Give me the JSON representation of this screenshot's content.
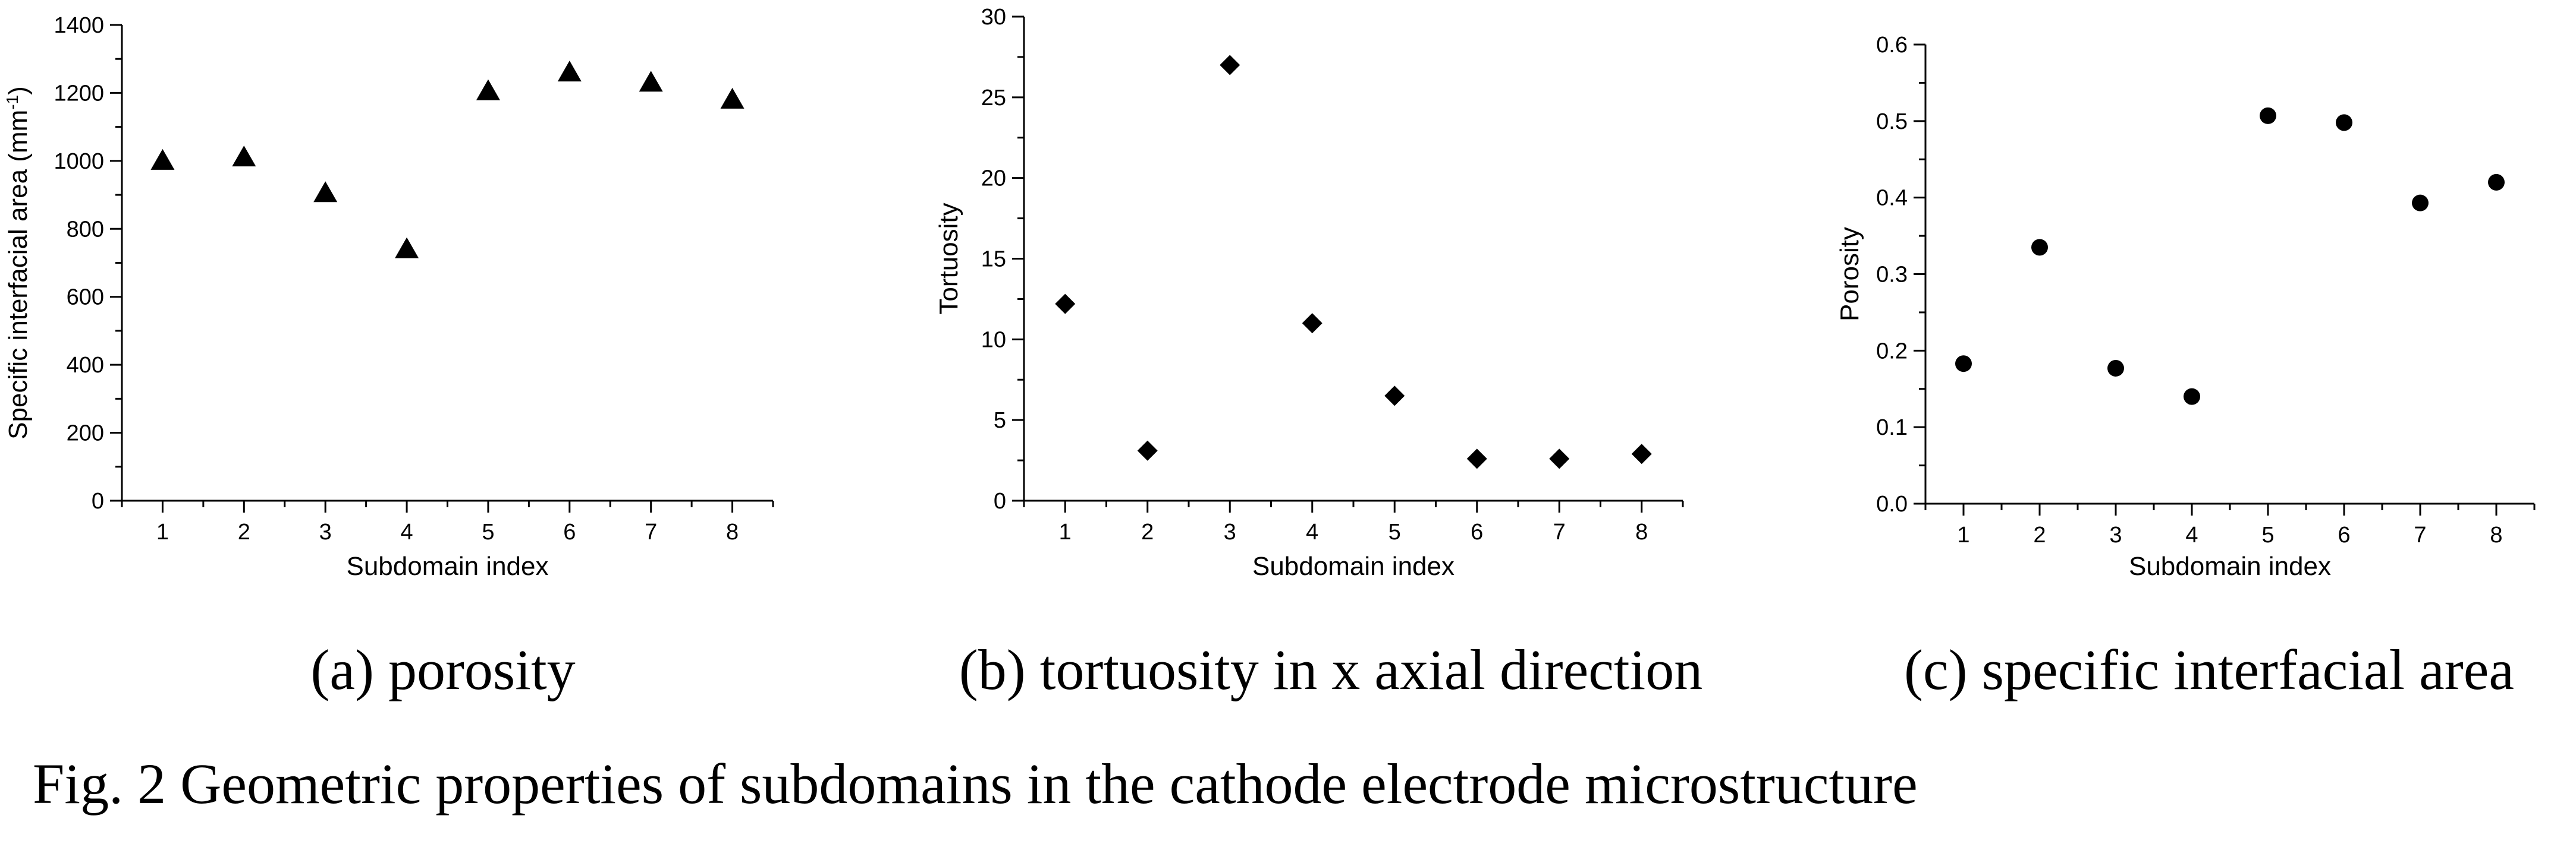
{
  "figure": {
    "caption": "Fig. 2 Geometric properties of subdomains in the cathode electrode microstructure"
  },
  "panels": [
    {
      "sublabel": "(a) porosity"
    },
    {
      "sublabel": "(b) tortuosity in x axial direction"
    },
    {
      "sublabel": "(c)  specific interfacial area"
    }
  ],
  "chart_data": [
    {
      "type": "scatter",
      "marker": "triangle",
      "xlabel": "Subdomain index",
      "ylabel": "Specific interfacial area (mm",
      "ylabel_sup": "-1",
      "ylabel_tail": ")",
      "x": [
        1,
        2,
        3,
        4,
        5,
        6,
        7,
        8
      ],
      "y": [
        1000,
        1010,
        905,
        740,
        1205,
        1260,
        1230,
        1180
      ],
      "xlim": [
        0.5,
        8.5
      ],
      "ylim": [
        0,
        1400
      ],
      "xticks": [
        "1",
        "2",
        "3",
        "4",
        "5",
        "6",
        "7",
        "8"
      ],
      "yticks": [
        "0",
        "200",
        "400",
        "600",
        "800",
        "1000",
        "1200",
        "1400"
      ],
      "grid": false
    },
    {
      "type": "scatter",
      "marker": "diamond",
      "xlabel": "Subdomain index",
      "ylabel": "Tortuosity",
      "x": [
        1,
        2,
        3,
        4,
        5,
        6,
        7,
        8
      ],
      "y": [
        12.2,
        3.1,
        27,
        11,
        6.5,
        2.6,
        2.6,
        2.9
      ],
      "xlim": [
        0.5,
        8.5
      ],
      "ylim": [
        0,
        30
      ],
      "xticks": [
        "1",
        "2",
        "3",
        "4",
        "5",
        "6",
        "7",
        "8"
      ],
      "yticks": [
        "0",
        "5",
        "10",
        "15",
        "20",
        "25",
        "30"
      ],
      "grid": false
    },
    {
      "type": "scatter",
      "marker": "circle",
      "xlabel": "Subdomain index",
      "ylabel": "Porosity",
      "x": [
        1,
        2,
        3,
        4,
        5,
        6,
        7,
        8
      ],
      "y": [
        0.183,
        0.335,
        0.177,
        0.14,
        0.507,
        0.498,
        0.393,
        0.42
      ],
      "xlim": [
        0.5,
        8.5
      ],
      "ylim": [
        0,
        0.6
      ],
      "xticks": [
        "1",
        "2",
        "3",
        "4",
        "5",
        "6",
        "7",
        "8"
      ],
      "yticks": [
        "0.0",
        "0.1",
        "0.2",
        "0.3",
        "0.4",
        "0.5",
        "0.6"
      ],
      "grid": false
    }
  ]
}
